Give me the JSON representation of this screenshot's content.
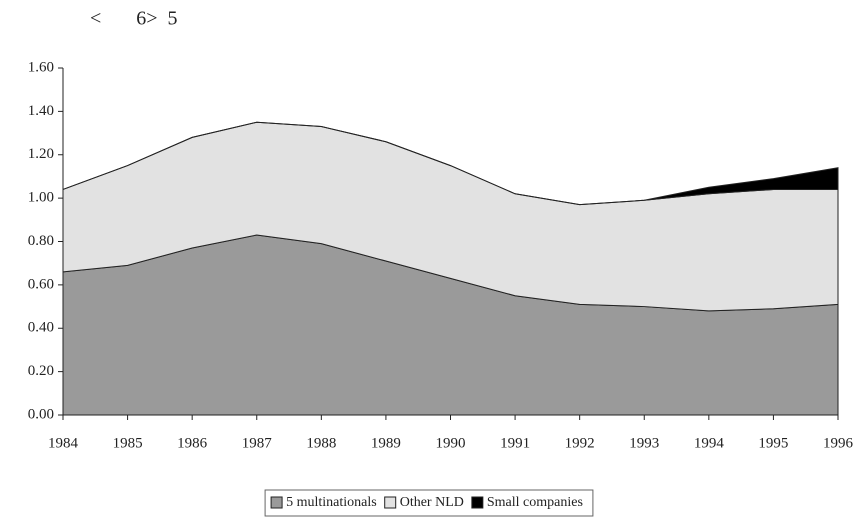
{
  "chart_data": {
    "type": "stacked_area",
    "title": "<       6>  5",
    "x": [
      1984,
      1985,
      1986,
      1987,
      1988,
      1989,
      1990,
      1991,
      1992,
      1993,
      1994,
      1995,
      1996
    ],
    "xlim": [
      1984,
      1996
    ],
    "xticks": [
      1984,
      1985,
      1986,
      1987,
      1988,
      1989,
      1990,
      1991,
      1992,
      1993,
      1994,
      1995,
      1996
    ],
    "ylim": [
      0,
      1.6
    ],
    "yticks": [
      {
        "value": 0,
        "label": "0.00"
      },
      {
        "value": 0.2,
        "label": "0.20"
      },
      {
        "value": 0.4,
        "label": "0.40"
      },
      {
        "value": 0.6,
        "label": "0.60"
      },
      {
        "value": 0.8,
        "label": "0.80"
      },
      {
        "value": 1.0,
        "label": "1.00"
      },
      {
        "value": 1.2,
        "label": "1.20"
      },
      {
        "value": 1.4,
        "label": "1.40"
      },
      {
        "value": 1.6,
        "label": "1.60"
      }
    ],
    "legend": "bottom",
    "series": [
      {
        "name": "5 multinationals",
        "color": "#9a9a9a",
        "values": [
          0.66,
          0.69,
          0.77,
          0.83,
          0.79,
          0.71,
          0.63,
          0.55,
          0.51,
          0.5,
          0.48,
          0.49,
          0.51
        ]
      },
      {
        "name": "Other NLD",
        "color": "#e2e2e2",
        "values": [
          0.38,
          0.46,
          0.51,
          0.52,
          0.54,
          0.55,
          0.52,
          0.47,
          0.46,
          0.49,
          0.54,
          0.55,
          0.53
        ]
      },
      {
        "name": "Small companies",
        "color": "#000000",
        "values": [
          0,
          0,
          0,
          0,
          0,
          0,
          0,
          0,
          0,
          0,
          0.03,
          0.05,
          0.1
        ]
      }
    ]
  }
}
